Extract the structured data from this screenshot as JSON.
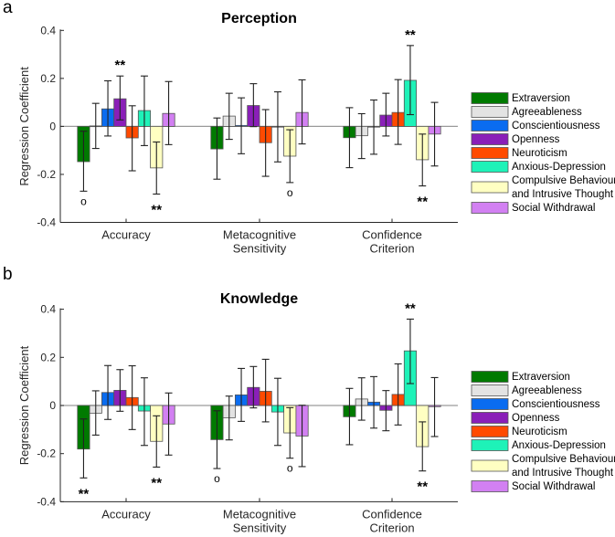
{
  "chart_data": [
    {
      "type": "bar",
      "panel_label": "a",
      "title": "Perception",
      "ylabel": "Regression Coefficient",
      "ylim": [
        -0.4,
        0.4
      ],
      "yticks": [
        "0.4",
        "0.2",
        "0",
        "-0.2",
        "-0.4"
      ],
      "categories": [
        [
          "Accuracy"
        ],
        [
          "Metacognitive",
          "Sensitivity"
        ],
        [
          "Confidence",
          "Criterion"
        ]
      ],
      "series": [
        {
          "name": "Extraversion",
          "color": "#007a00",
          "values": [
            -0.147,
            -0.094,
            -0.047
          ],
          "err_hi": [
            -0.02,
            0.035,
            0.078
          ],
          "err_lo": [
            -0.27,
            -0.22,
            -0.172
          ]
        },
        {
          "name": "Agreeableness",
          "color": "#e3e3e3",
          "values": [
            0.002,
            0.043,
            -0.039
          ],
          "err_hi": [
            0.096,
            0.138,
            0.053
          ],
          "err_lo": [
            -0.092,
            -0.054,
            -0.134
          ]
        },
        {
          "name": "Conscientiousness",
          "color": "#0a6cf0",
          "values": [
            0.073,
            0.004,
            -0.003
          ],
          "err_hi": [
            0.19,
            0.119,
            0.11
          ],
          "err_lo": [
            -0.04,
            -0.114,
            -0.116
          ]
        },
        {
          "name": "Openness",
          "color": "#8a1fb8",
          "values": [
            0.115,
            0.087,
            0.047
          ],
          "err_hi": [
            0.21,
            0.178,
            0.138
          ],
          "err_lo": [
            0.027,
            -0.001,
            -0.04
          ]
        },
        {
          "name": "Neuroticism",
          "color": "#ff4a00",
          "values": [
            -0.048,
            -0.068,
            0.058
          ],
          "err_hi": [
            0.086,
            0.07,
            0.195
          ],
          "err_lo": [
            -0.185,
            -0.208,
            -0.075
          ]
        },
        {
          "name": "Anxious-Depression",
          "color": "#1ef2b8",
          "values": [
            0.066,
            -0.001,
            0.192
          ],
          "err_hi": [
            0.21,
            0.144,
            0.337
          ],
          "err_lo": [
            -0.08,
            -0.148,
            0.049
          ]
        },
        {
          "name": "Compulsive Behaviour and Intrusive Thought",
          "name_lines": [
            "Compulsive Behaviour",
            "and Intrusive Thought"
          ],
          "color": "#ffffc2",
          "values": [
            -0.173,
            -0.124,
            -0.139
          ],
          "err_hi": [
            -0.065,
            -0.014,
            -0.032
          ],
          "err_lo": [
            -0.282,
            -0.234,
            -0.248
          ]
        },
        {
          "name": "Social Withdrawal",
          "color": "#d280f2",
          "values": [
            0.054,
            0.058,
            -0.032
          ],
          "err_hi": [
            0.187,
            0.194,
            0.1
          ],
          "err_lo": [
            -0.076,
            -0.073,
            -0.165
          ]
        }
      ],
      "annotations": [
        {
          "category": 0,
          "series": 0,
          "text": "o",
          "position": "below"
        },
        {
          "category": 0,
          "series": 3,
          "text": "**",
          "position": "above"
        },
        {
          "category": 0,
          "series": 6,
          "text": "**",
          "position": "below"
        },
        {
          "category": 1,
          "series": 6,
          "text": "o",
          "position": "below"
        },
        {
          "category": 2,
          "series": 5,
          "text": "**",
          "position": "above"
        },
        {
          "category": 2,
          "series": 6,
          "text": "**",
          "position": "below"
        }
      ],
      "legend": "right"
    },
    {
      "type": "bar",
      "panel_label": "b",
      "title": "Knowledge",
      "ylabel": "Regression Coefficient",
      "ylim": [
        -0.4,
        0.4
      ],
      "yticks": [
        "0.4",
        "0.2",
        "0",
        "-0.2",
        "-0.4"
      ],
      "categories": [
        [
          "Accuracy"
        ],
        [
          "Metacognitive",
          "Sensitivity"
        ],
        [
          "Confidence",
          "Criterion"
        ]
      ],
      "series": [
        {
          "name": "Extraversion",
          "color": "#007a00",
          "values": [
            -0.181,
            -0.142,
            -0.047
          ],
          "err_hi": [
            -0.056,
            -0.022,
            0.071
          ],
          "err_lo": [
            -0.301,
            -0.262,
            -0.163
          ]
        },
        {
          "name": "Agreeableness",
          "color": "#e3e3e3",
          "values": [
            -0.032,
            -0.051,
            0.027
          ],
          "err_hi": [
            0.061,
            0.039,
            0.115
          ],
          "err_lo": [
            -0.123,
            -0.143,
            -0.061
          ]
        },
        {
          "name": "Conscientiousness",
          "color": "#0a6cf0",
          "values": [
            0.054,
            0.044,
            0.014
          ],
          "err_hi": [
            0.166,
            0.154,
            0.12
          ],
          "err_lo": [
            -0.058,
            -0.066,
            -0.094
          ]
        },
        {
          "name": "Openness",
          "color": "#8a1fb8",
          "values": [
            0.063,
            0.075,
            -0.02
          ],
          "err_hi": [
            0.149,
            0.162,
            0.062
          ],
          "err_lo": [
            -0.024,
            -0.01,
            -0.105
          ]
        },
        {
          "name": "Neuroticism",
          "color": "#ff4a00",
          "values": [
            0.033,
            0.059,
            0.046
          ],
          "err_hi": [
            0.165,
            0.192,
            0.173
          ],
          "err_lo": [
            -0.1,
            -0.068,
            -0.081
          ]
        },
        {
          "name": "Anxious-Depression",
          "color": "#1ef2b8",
          "values": [
            -0.023,
            -0.027,
            0.227
          ],
          "err_hi": [
            0.115,
            0.113,
            0.359
          ],
          "err_lo": [
            -0.166,
            -0.166,
            0.091
          ]
        },
        {
          "name": "Compulsive Behaviour and Intrusive Thought",
          "name_lines": [
            "Compulsive Behaviour",
            "and Intrusive Thought"
          ],
          "color": "#ffffc2",
          "values": [
            -0.149,
            -0.114,
            -0.171
          ],
          "err_hi": [
            -0.043,
            -0.009,
            -0.068
          ],
          "err_lo": [
            -0.256,
            -0.219,
            -0.272
          ]
        },
        {
          "name": "Social Withdrawal",
          "color": "#d280f2",
          "values": [
            -0.077,
            -0.127,
            -0.005
          ],
          "err_hi": [
            0.052,
            0.001,
            0.116
          ],
          "err_lo": [
            -0.206,
            -0.254,
            -0.129
          ]
        }
      ],
      "annotations": [
        {
          "category": 0,
          "series": 0,
          "text": "**",
          "position": "below"
        },
        {
          "category": 0,
          "series": 6,
          "text": "**",
          "position": "below"
        },
        {
          "category": 1,
          "series": 0,
          "text": "o",
          "position": "below"
        },
        {
          "category": 1,
          "series": 6,
          "text": "o",
          "position": "below"
        },
        {
          "category": 2,
          "series": 5,
          "text": "**",
          "position": "above"
        },
        {
          "category": 2,
          "series": 6,
          "text": "**",
          "position": "below"
        }
      ],
      "legend": "right"
    }
  ]
}
